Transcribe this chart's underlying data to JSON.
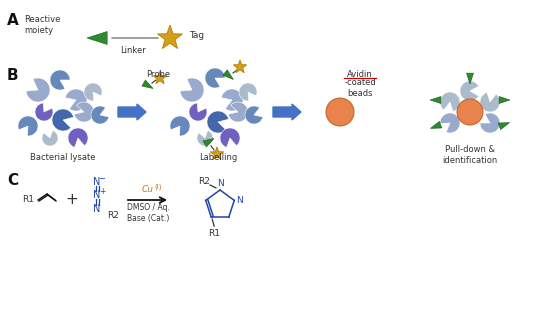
{
  "bg_color": "#ffffff",
  "label_A": "A",
  "label_B": "B",
  "label_C": "C",
  "green_color": "#2d8a2d",
  "green_dark": "#1a5e1a",
  "green_gradient_top": "#4ab54a",
  "star_color": "#d4a017",
  "star_edge": "#b8860b",
  "blue_arrow": "#4472C4",
  "orange_bead": "#E8834E",
  "orange_bead_edge": "#c06020",
  "purple_protein": "#7060C0",
  "blue_protein_dark": "#4466AA",
  "blue_protein_mid": "#6688BB",
  "light_blue_protein": "#99AACC",
  "silver_protein": "#AABBCC",
  "avidin_underline_color": "#cc0000",
  "triazole_color": "#2244AA",
  "black": "#111111",
  "dark_gray": "#333333",
  "med_gray": "#888888",
  "orange_cu": "#CC7722",
  "line_gray": "#999999"
}
